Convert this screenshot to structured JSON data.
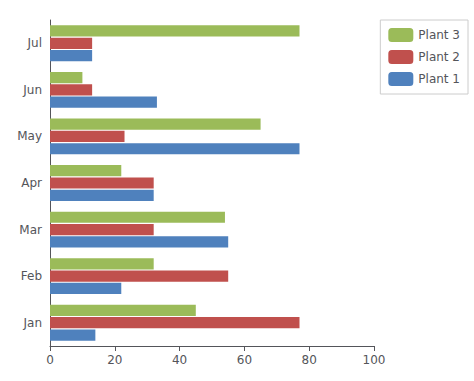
{
  "chart_data": {
    "type": "bar",
    "orientation": "horizontal",
    "categories": [
      "Jan",
      "Feb",
      "Mar",
      "Apr",
      "May",
      "Jun",
      "Jul"
    ],
    "series": [
      {
        "name": "Plant 3",
        "color": "#9BBB59",
        "values": [
          45,
          32,
          54,
          22,
          65,
          10,
          77
        ]
      },
      {
        "name": "Plant 2",
        "color": "#C0504D",
        "values": [
          77,
          55,
          32,
          32,
          23,
          13,
          13
        ]
      },
      {
        "name": "Plant 1",
        "color": "#4F81BD",
        "values": [
          14,
          22,
          55,
          32,
          77,
          33,
          13
        ]
      }
    ],
    "xlim": [
      0,
      100
    ],
    "xticks": [
      0,
      20,
      40,
      60,
      80,
      100
    ],
    "grid": false,
    "legend": "right"
  }
}
